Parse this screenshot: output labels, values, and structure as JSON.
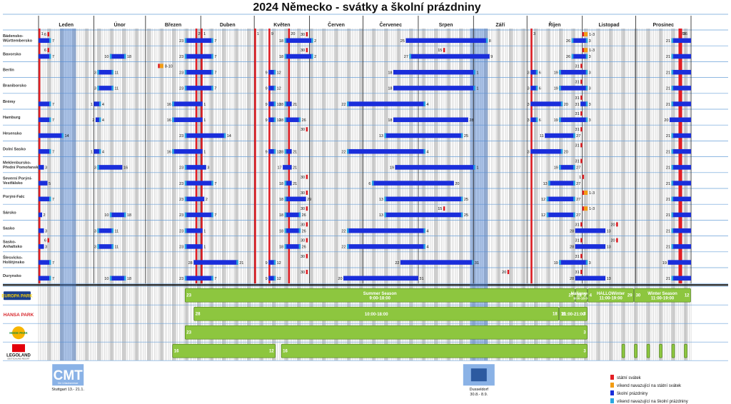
{
  "chart_data": {
    "type": "table",
    "title": "2024 Německo - svátky a školní prázdniny",
    "months": [
      "Leden",
      "Únor",
      "Březen",
      "Duben",
      "Květen",
      "Červen",
      "Červenec",
      "Srpen",
      "Září",
      "Říjen",
      "Listopad",
      "Prosinec"
    ],
    "legend": [
      {
        "label": "státní svátek",
        "color": "#e31e24"
      },
      {
        "label": "víkend navazující na státní svátek",
        "color": "#f39c12"
      },
      {
        "label": "školní prázdniny",
        "color": "#1a2edb"
      },
      {
        "label": "víkend navazující na školní prázdniny",
        "color": "#2aa7e0"
      }
    ],
    "national_holidays": [
      "01-01",
      "03-29",
      "04-01",
      "05-01",
      "05-09",
      "05-20",
      "10-03",
      "12-25",
      "12-26"
    ],
    "states": [
      {
        "name": "Bádensko-Württembersko",
        "holidays": [
          [
            "01-06",
            "6"
          ],
          [
            "05-30",
            "30"
          ],
          [
            "11-01",
            "1-3"
          ]
        ],
        "vacations": [
          [
            "12-21",
            "01-07"
          ],
          [
            "03-23",
            "04-07"
          ],
          [
            "05-18",
            "06-02"
          ],
          [
            "07-25",
            "09-08"
          ],
          [
            "10-26",
            "11-03"
          ],
          [
            "12-21",
            "12-31"
          ]
        ]
      },
      {
        "name": "Bavorsko",
        "holidays": [
          [
            "01-06",
            "6"
          ],
          [
            "05-30",
            "30"
          ],
          [
            "08-15",
            "15"
          ],
          [
            "11-01",
            "1-3"
          ]
        ],
        "vacations": [
          [
            "12-21",
            "01-07"
          ],
          [
            "02-10",
            "02-18"
          ],
          [
            "03-23",
            "04-07"
          ],
          [
            "05-18",
            "06-02"
          ],
          [
            "07-27",
            "09-09"
          ],
          [
            "10-26",
            "11-03"
          ],
          [
            "12-21",
            "12-31"
          ]
        ]
      },
      {
        "name": "Berlín",
        "holidays": [
          [
            "03-08",
            "8-10"
          ],
          [
            "10-31",
            "31"
          ]
        ],
        "vacations": [
          [
            "02-03",
            "02-11"
          ],
          [
            "03-23",
            "04-07"
          ],
          [
            "05-09",
            "05-12"
          ],
          [
            "07-18",
            "09-01"
          ],
          [
            "10-03",
            "10-06"
          ],
          [
            "10-19",
            "11-03"
          ],
          [
            "12-21",
            "12-31"
          ]
        ]
      },
      {
        "name": "Braniborsko",
        "holidays": [
          [
            "10-31",
            "31"
          ]
        ],
        "vacations": [
          [
            "02-03",
            "02-11"
          ],
          [
            "03-23",
            "04-07"
          ],
          [
            "05-09",
            "05-12"
          ],
          [
            "07-18",
            "09-01"
          ],
          [
            "10-03",
            "10-06"
          ],
          [
            "10-19",
            "11-03"
          ],
          [
            "12-21",
            "12-31"
          ]
        ]
      },
      {
        "name": "Brémy",
        "holidays": [
          [
            "10-31",
            "31"
          ]
        ],
        "vacations": [
          [
            "12-21",
            "01-07"
          ],
          [
            "02-01",
            "02-04"
          ],
          [
            "03-16",
            "04-01"
          ],
          [
            "05-09",
            "05-12"
          ],
          [
            "05-18",
            "05-21"
          ],
          [
            "06-22",
            "08-04"
          ],
          [
            "10-03",
            "10-20"
          ],
          [
            "10-31",
            "11-03"
          ],
          [
            "12-21",
            "12-31"
          ]
        ]
      },
      {
        "name": "Hamburg",
        "holidays": [
          [
            "10-31",
            "31"
          ]
        ],
        "vacations": [
          [
            "12-21",
            "01-07"
          ],
          [
            "02-02",
            "02-04"
          ],
          [
            "03-16",
            "04-01"
          ],
          [
            "05-09",
            "05-12"
          ],
          [
            "05-18",
            "05-26"
          ],
          [
            "07-18",
            "08-28"
          ],
          [
            "10-03",
            "10-06"
          ],
          [
            "10-19",
            "11-03"
          ],
          [
            "12-20",
            "12-31"
          ]
        ]
      },
      {
        "name": "Hesensko",
        "holidays": [
          [
            "05-30",
            "30"
          ],
          [
            "10-31",
            "31"
          ]
        ],
        "vacations": [
          [
            "12-21",
            "01-14"
          ],
          [
            "03-23",
            "04-14"
          ],
          [
            "07-13",
            "08-25"
          ],
          [
            "10-11",
            "10-27"
          ],
          [
            "12-21",
            "12-31"
          ]
        ]
      },
      {
        "name": "Dolní Sasko",
        "holidays": [
          [
            "10-31",
            "31"
          ]
        ],
        "vacations": [
          [
            "12-21",
            "01-07"
          ],
          [
            "02-01",
            "02-04"
          ],
          [
            "03-16",
            "04-01"
          ],
          [
            "05-09",
            "05-12"
          ],
          [
            "05-18",
            "05-21"
          ],
          [
            "06-22",
            "08-04"
          ],
          [
            "10-03",
            "10-20"
          ],
          [
            "12-21",
            "12-31"
          ]
        ]
      },
      {
        "name": "Meklenbursko-Přední Pomořansko",
        "holidays": [
          [
            "10-31",
            "31"
          ]
        ],
        "vacations": [
          [
            "12-21",
            "01-03"
          ],
          [
            "02-03",
            "02-16"
          ],
          [
            "03-23",
            "04-03"
          ],
          [
            "05-17",
            "05-21"
          ],
          [
            "07-19",
            "09-01"
          ],
          [
            "10-19",
            "10-27"
          ],
          [
            "12-21",
            "12-31"
          ]
        ]
      },
      {
        "name": "Severní Porýní-Vestfálsko",
        "holidays": [
          [
            "05-30",
            "30"
          ],
          [
            "11-01",
            "1"
          ]
        ],
        "vacations": [
          [
            "12-21",
            "01-05"
          ],
          [
            "03-23",
            "04-07"
          ],
          [
            "05-18",
            "05-21"
          ],
          [
            "07-06",
            "08-20"
          ],
          [
            "10-13",
            "10-27"
          ],
          [
            "12-21",
            "12-31"
          ]
        ]
      },
      {
        "name": "Porýní-Falc",
        "holidays": [
          [
            "05-30",
            "30"
          ],
          [
            "11-01",
            "1-3"
          ]
        ],
        "vacations": [
          [
            "12-21",
            "01-07"
          ],
          [
            "03-23",
            "04-02"
          ],
          [
            "05-18",
            "05-29"
          ],
          [
            "07-13",
            "08-25"
          ],
          [
            "10-12",
            "10-27"
          ],
          [
            "12-21",
            "12-31"
          ]
        ]
      },
      {
        "name": "Sársko",
        "holidays": [
          [
            "05-30",
            "30"
          ],
          [
            "08-15",
            "15"
          ],
          [
            "11-01",
            "1-3"
          ]
        ],
        "vacations": [
          [
            "12-21",
            "01-02"
          ],
          [
            "02-10",
            "02-18"
          ],
          [
            "03-23",
            "04-07"
          ],
          [
            "05-18",
            "05-26"
          ],
          [
            "07-13",
            "08-25"
          ],
          [
            "10-12",
            "10-27"
          ],
          [
            "12-21",
            "12-31"
          ]
        ]
      },
      {
        "name": "Sasko",
        "holidays": [
          [
            "05-30",
            "30"
          ],
          [
            "10-31",
            "31"
          ],
          [
            "11-20",
            "20"
          ]
        ],
        "vacations": [
          [
            "12-21",
            "01-03"
          ],
          [
            "02-03",
            "02-11"
          ],
          [
            "03-23",
            "04-01"
          ],
          [
            "05-18",
            "05-26"
          ],
          [
            "06-22",
            "08-04"
          ],
          [
            "10-28",
            "11-13"
          ],
          [
            "12-21",
            "12-31"
          ]
        ]
      },
      {
        "name": "Sasko-Anhaltsko",
        "holidays": [
          [
            "01-06",
            "6"
          ],
          [
            "05-30",
            "30"
          ],
          [
            "10-31",
            "31"
          ],
          [
            "11-20",
            "20"
          ]
        ],
        "vacations": [
          [
            "12-21",
            "01-03"
          ],
          [
            "02-03",
            "02-11"
          ],
          [
            "03-23",
            "04-01"
          ],
          [
            "05-18",
            "05-26"
          ],
          [
            "06-22",
            "08-04"
          ],
          [
            "10-28",
            "11-13"
          ],
          [
            "12-21",
            "12-31"
          ]
        ]
      },
      {
        "name": "Šlesvicko-Holštýnsko",
        "holidays": [
          [
            "05-30",
            "30"
          ],
          [
            "10-31",
            "31"
          ]
        ],
        "vacations": [
          [
            "12-21",
            "01-07"
          ],
          [
            "03-28",
            "04-21"
          ],
          [
            "05-09",
            "05-12"
          ],
          [
            "07-22",
            "08-31"
          ],
          [
            "10-19",
            "11-03"
          ],
          [
            "12-19",
            "12-31"
          ]
        ]
      },
      {
        "name": "Durynsko",
        "holidays": [
          [
            "05-30",
            "30"
          ],
          [
            "09-20",
            "20"
          ],
          [
            "10-31",
            "31"
          ]
        ],
        "vacations": [
          [
            "12-21",
            "01-07"
          ],
          [
            "02-10",
            "02-18"
          ],
          [
            "03-23",
            "04-07"
          ],
          [
            "05-09",
            "05-12"
          ],
          [
            "06-20",
            "07-31"
          ],
          [
            "10-28",
            "11-13"
          ],
          [
            "12-21",
            "12-31"
          ]
        ]
      }
    ],
    "parks": [
      {
        "name": "Europa-Park",
        "logo_text": "EUROPA PARK",
        "seasons": [
          {
            "start": "03-23",
            "end": "10-27",
            "label": "Summer Season",
            "hours": "9:00-18:00",
            "start_label": "23",
            "end_label": "27"
          },
          {
            "start": "10-28",
            "end": "11-03",
            "label": "Halloween",
            "hours": "9:00-18:00",
            "start_label": "28",
            "end_label": "3"
          },
          {
            "start": "11-04",
            "end": "11-29",
            "label": "HALLOWinter",
            "hours": "11:00-19:00",
            "start_label": "4",
            "end_label": "29"
          },
          {
            "start": "11-30",
            "end": "12-31",
            "label": "Winter Season",
            "hours": "11:00-19:00",
            "start_label": "30",
            "end_label": "12"
          }
        ]
      },
      {
        "name": "Hansa-Park",
        "logo_text": "HANSA PARK",
        "seasons": [
          {
            "start": "03-28",
            "end": "10-18",
            "label": "",
            "hours": "10:00-18:00",
            "start_label": "28",
            "end_label": "18"
          },
          {
            "start": "10-19",
            "end": "11-03",
            "label": "",
            "hours": "11:00-21:00",
            "start_label": "19",
            "end_label": "3"
          }
        ]
      },
      {
        "name": "Heide Park",
        "logo_text": "HEIDE PARK",
        "seasons": [
          {
            "start": "03-23",
            "end": "11-03",
            "label": "",
            "hours": "",
            "start_label": "23",
            "end_label": "3"
          }
        ]
      },
      {
        "name": "Legoland",
        "logo_text": "LEGOLAND",
        "sub_text": "DEUTSCHLAND RESORT",
        "seasons": [
          {
            "start": "03-16",
            "end": "05-12",
            "label": "",
            "hours": "",
            "start_label": "16",
            "end_label": "12"
          },
          {
            "start": "05-16",
            "end": "11-03",
            "label": "",
            "hours": "",
            "start_label": "16",
            "end_label": "3"
          },
          {
            "start": "11-23",
            "end": "11-24",
            "label": "",
            "hours": "",
            "start_label": "",
            "end_label": ""
          },
          {
            "start": "11-30",
            "end": "12-01",
            "label": "",
            "hours": "",
            "start_label": "",
            "end_label": ""
          },
          {
            "start": "12-07",
            "end": "12-08",
            "label": "",
            "hours": "",
            "start_label": "",
            "end_label": ""
          },
          {
            "start": "12-14",
            "end": "12-15",
            "label": "",
            "hours": "",
            "start_label": "",
            "end_label": ""
          },
          {
            "start": "12-21",
            "end": "12-22",
            "label": "",
            "hours": "",
            "start_label": "",
            "end_label": ""
          },
          {
            "start": "12-28",
            "end": "12-29",
            "label": "",
            "hours": "",
            "start_label": "",
            "end_label": ""
          }
        ]
      }
    ],
    "fairs": [
      {
        "name": "CMT",
        "logo_text": "CMT",
        "sub_text": "Die Urlaubsmesse",
        "start": "01-13",
        "end": "01-21",
        "caption": "Stuttgart 13.- 21.1."
      },
      {
        "name": "Dusseldorf",
        "logo_text": "",
        "sub_text": "",
        "start": "08-30",
        "end": "09-08",
        "caption": "Dusseldorf 30.8.- 8.9."
      }
    ]
  }
}
